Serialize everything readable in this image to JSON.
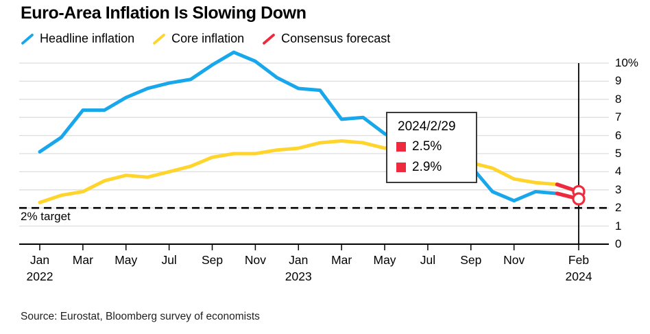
{
  "title": "Euro-Area Inflation Is Slowing Down",
  "legend": [
    {
      "label": "Headline inflation",
      "color": "#18A7EB"
    },
    {
      "label": "Core inflation",
      "color": "#FFD52D"
    },
    {
      "label": "Consensus forecast",
      "color": "#EE2B3E"
    }
  ],
  "tooltip": {
    "title": "2024/2/29",
    "rows": [
      {
        "swatch_color": "#EE2B3E",
        "value": "2.5%"
      },
      {
        "swatch_color": "#EE2B3E",
        "value": "2.9%"
      }
    ]
  },
  "target_label": "2% target",
  "source": "Source: Eurostat, Bloomberg survey of economists",
  "chart_data": {
    "type": "line",
    "title": "Euro-Area Inflation Is Slowing Down",
    "x_unit": "months from Jan 2022",
    "ylim": [
      0,
      10
    ],
    "grid": true,
    "legend_position": "top",
    "colors": {
      "headline": "#18A7EB",
      "core": "#FFD52D",
      "forecast": "#EE2B3E",
      "grid": "#DDDDDD",
      "axis": "#000000"
    },
    "y_axis": {
      "tick_values": [
        0,
        1,
        2,
        3,
        4,
        5,
        6,
        7,
        8,
        9,
        10
      ],
      "tick_labels": [
        "0",
        "1",
        "2",
        "3",
        "4",
        "5",
        "6",
        "7",
        "8",
        "9",
        "10%"
      ]
    },
    "x_axis": {
      "ticks": [
        {
          "month": 0,
          "label": "Jan",
          "year": "2022"
        },
        {
          "month": 2,
          "label": "Mar",
          "year": ""
        },
        {
          "month": 4,
          "label": "May",
          "year": ""
        },
        {
          "month": 6,
          "label": "Jul",
          "year": ""
        },
        {
          "month": 8,
          "label": "Sep",
          "year": ""
        },
        {
          "month": 10,
          "label": "Nov",
          "year": ""
        },
        {
          "month": 12,
          "label": "Jan",
          "year": "2023"
        },
        {
          "month": 14,
          "label": "Mar",
          "year": ""
        },
        {
          "month": 16,
          "label": "May",
          "year": ""
        },
        {
          "month": 18,
          "label": "Jul",
          "year": ""
        },
        {
          "month": 20,
          "label": "Sep",
          "year": ""
        },
        {
          "month": 22,
          "label": "Nov",
          "year": ""
        },
        {
          "month": 25,
          "label": "Feb",
          "year": "2024"
        }
      ]
    },
    "series": [
      {
        "name": "Headline inflation",
        "color_key": "headline",
        "start_month": 0,
        "values": [
          5.1,
          5.9,
          7.4,
          7.4,
          8.1,
          8.6,
          8.9,
          9.1,
          9.9,
          10.6,
          10.1,
          9.2,
          8.6,
          8.5,
          6.9,
          7.0,
          6.1,
          5.5,
          5.3,
          5.2,
          4.3,
          2.9,
          2.4,
          2.9,
          2.8
        ]
      },
      {
        "name": "Core inflation",
        "color_key": "core",
        "start_month": 0,
        "values": [
          2.3,
          2.7,
          2.9,
          3.5,
          3.8,
          3.7,
          4.0,
          4.3,
          4.8,
          5.0,
          5.0,
          5.2,
          5.3,
          5.6,
          5.7,
          5.6,
          5.3,
          5.5,
          5.5,
          5.3,
          4.5,
          4.2,
          3.6,
          3.4,
          3.3
        ]
      },
      {
        "name": "Consensus forecast",
        "color_key": "forecast",
        "segments": [
          {
            "months": [
              24,
              25
            ],
            "values": [
              3.3,
              2.9
            ]
          },
          {
            "months": [
              24,
              25
            ],
            "values": [
              2.8,
              2.5
            ]
          }
        ],
        "endpoints": [
          {
            "month": 25,
            "value": 2.9
          },
          {
            "month": 25,
            "value": 2.5
          }
        ]
      }
    ],
    "annotations": {
      "target_line": {
        "value": 2,
        "label": "2% target",
        "style": "dashed"
      },
      "event_line": {
        "month": 25
      }
    }
  }
}
